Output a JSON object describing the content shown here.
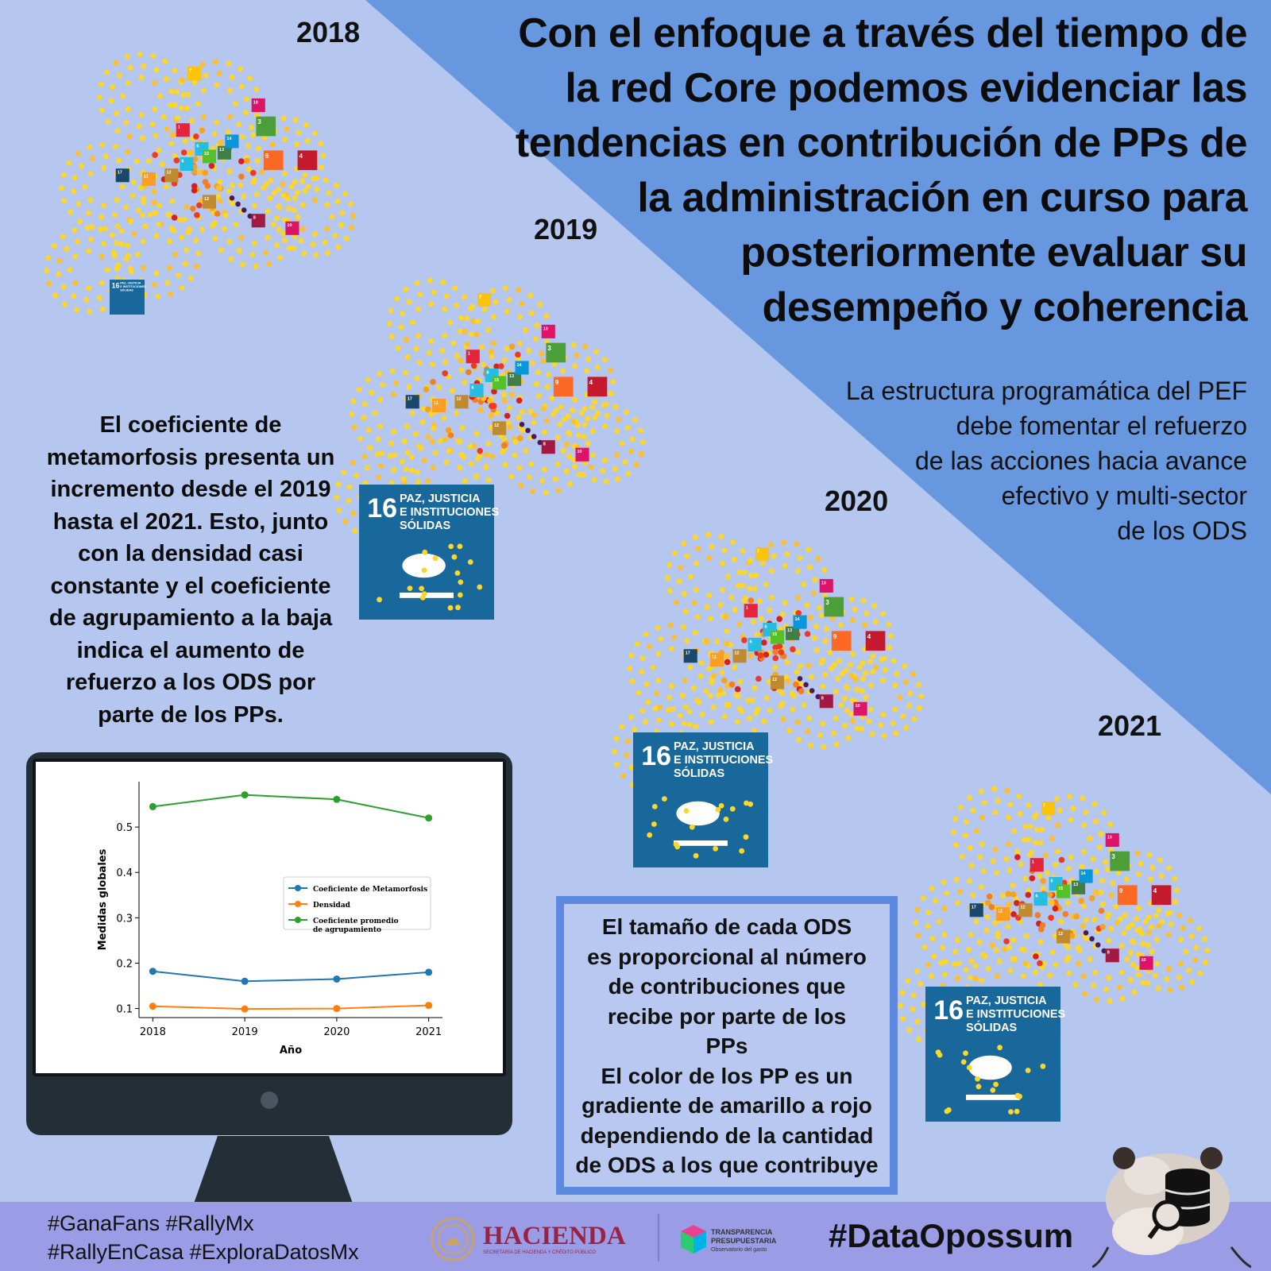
{
  "title": {
    "lines": [
      "Con el enfoque a través del tiempo de",
      "la red Core podemos evidenciar las",
      "tendencias en contribución de PPs de",
      "la administración en curso para",
      "posteriormente evaluar su",
      "desempeño y coherencia"
    ]
  },
  "subtitle": {
    "lines": [
      "La estructura programática del PEF",
      "debe fomentar el refuerzo",
      "de las acciones hacia avance",
      "efectivo y multi-sector",
      "de los ODS"
    ]
  },
  "years": [
    "2018",
    "2019",
    "2020",
    "2021"
  ],
  "left_text": {
    "lines": [
      "El coeficiente de",
      "metamorfosis presenta un",
      "incremento desde el 2019",
      "hasta el 2021. Esto, junto",
      "con la densidad casi",
      "constante y el coeficiente",
      "de agrupamiento a la baja",
      "indica el aumento de",
      "refuerzo a los ODS por",
      "parte de los PPs."
    ]
  },
  "info_box": {
    "lines": [
      "El tamaño  de cada ODS",
      "es proporcional al  número",
      "de contribuciones que",
      "recibe por parte de los",
      "PPs",
      "El color de los PP es un",
      "gradiente de amarillo a rojo",
      "dependiendo de la cantidad",
      "de ODS a los que contribuye"
    ]
  },
  "sdg16_card": {
    "number": "16",
    "label_lines": [
      "PAZ, JUSTICIA",
      "E INSTITUCIONES",
      "SÓLIDAS"
    ],
    "color": "#19689c"
  },
  "sdg_small": [
    {
      "n": "1",
      "color": "#e5243b"
    },
    {
      "n": "3",
      "color": "#4c9f38"
    },
    {
      "n": "4",
      "color": "#c5192d"
    },
    {
      "n": "5",
      "color": "#ff3a21"
    },
    {
      "n": "6",
      "color": "#26bde2"
    },
    {
      "n": "7",
      "color": "#fcc30b"
    },
    {
      "n": "8",
      "color": "#a21942"
    },
    {
      "n": "9",
      "color": "#fd6925"
    },
    {
      "n": "10",
      "color": "#dd1367"
    },
    {
      "n": "11",
      "color": "#fd9d24"
    },
    {
      "n": "12",
      "color": "#bf8b2e"
    },
    {
      "n": "13",
      "color": "#3f7e44"
    },
    {
      "n": "14",
      "color": "#0a97d9"
    },
    {
      "n": "15",
      "color": "#56c02b"
    },
    {
      "n": "17",
      "color": "#19486a"
    }
  ],
  "node_colors": [
    "#fcd72a",
    "#fbc02d",
    "#f7a21d",
    "#f57c1f",
    "#ee3a23",
    "#d61f1f",
    "#4a1a5c"
  ],
  "chart_data": {
    "type": "line",
    "x": [
      2018,
      2019,
      2020,
      2021
    ],
    "xlabel": "Año",
    "ylabel": "Medidas globales",
    "ylim": [
      0.08,
      0.6
    ],
    "yticks": [
      0.1,
      0.2,
      0.3,
      0.4,
      0.5
    ],
    "ytick_labels": [
      "0.1",
      "0.2",
      "0.3",
      "0.4",
      "0.5"
    ],
    "xtick_labels": [
      "2018",
      "2019",
      "2020",
      "2021"
    ],
    "legend_position": "center-right",
    "series": [
      {
        "name": "Coeficiente de Metamorfosis",
        "color": "#1f77b4",
        "values": [
          0.182,
          0.16,
          0.165,
          0.18
        ]
      },
      {
        "name": "Densidad",
        "color": "#ff7f0e",
        "values": [
          0.105,
          0.099,
          0.1,
          0.107
        ]
      },
      {
        "name": "Coeficiente promedio\nde agrupamiento",
        "color": "#2ca02c",
        "values": [
          0.545,
          0.571,
          0.561,
          0.52
        ]
      }
    ]
  },
  "footer": {
    "hashtags_line1": "#GanaFans #RallyMx",
    "hashtags_line2": "#RallyEnCasa #ExploraDatosMx",
    "hacienda": "HACIENDA",
    "hacienda_sub": "SECRETARÍA DE HACIENDA Y CRÉDITO PÚBLICO",
    "tp_line1": "TRANSPARENCIA",
    "tp_line2": "PRESUPUESTARIA",
    "tp_line3": "Observatorio del gasto",
    "brand": "#DataOpossum",
    "brand_color": "#111111"
  },
  "colors": {
    "background": "#b5c6ef",
    "triangle": "#6797de",
    "footer": "#9b9ce6",
    "hacienda": "#9b2244"
  }
}
